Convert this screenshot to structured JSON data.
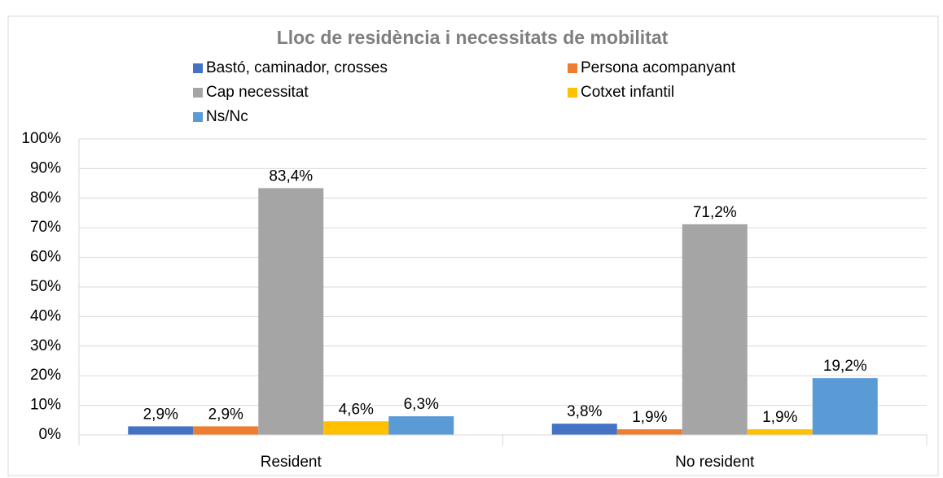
{
  "chart_data": {
    "type": "bar",
    "title": "Lloc de residència i necessitats de mobilitat",
    "categories": [
      "Resident",
      "No resident"
    ],
    "series": [
      {
        "name": "Bastó, caminador, crosses",
        "color": "#4472c4",
        "values": [
          2.9,
          3.8
        ],
        "value_labels": [
          "2,9%",
          "3,8%"
        ]
      },
      {
        "name": "Persona acompanyant",
        "color": "#ed7d31",
        "values": [
          2.9,
          1.9
        ],
        "value_labels": [
          "2,9%",
          "1,9%"
        ]
      },
      {
        "name": "Cap necessitat",
        "color": "#a5a5a5",
        "values": [
          83.4,
          71.2
        ],
        "value_labels": [
          "83,4%",
          "71,2%"
        ]
      },
      {
        "name": "Cotxet infantil",
        "color": "#ffc000",
        "values": [
          4.6,
          1.9
        ],
        "value_labels": [
          "4,6%",
          "1,9%"
        ]
      },
      {
        "name": "Ns/Nc",
        "color": "#5b9bd5",
        "values": [
          6.3,
          19.2
        ],
        "value_labels": [
          "6,3%",
          "19,2%"
        ]
      }
    ],
    "ylim": [
      0,
      100
    ],
    "yticks": [
      {
        "value": 0,
        "label": "0%"
      },
      {
        "value": 10,
        "label": "10%"
      },
      {
        "value": 20,
        "label": "20%"
      },
      {
        "value": 30,
        "label": "30%"
      },
      {
        "value": 40,
        "label": "40%"
      },
      {
        "value": 50,
        "label": "50%"
      },
      {
        "value": 60,
        "label": "60%"
      },
      {
        "value": 70,
        "label": "70%"
      },
      {
        "value": 80,
        "label": "80%"
      },
      {
        "value": 90,
        "label": "90%"
      },
      {
        "value": 100,
        "label": "100%"
      }
    ],
    "grid": true
  }
}
